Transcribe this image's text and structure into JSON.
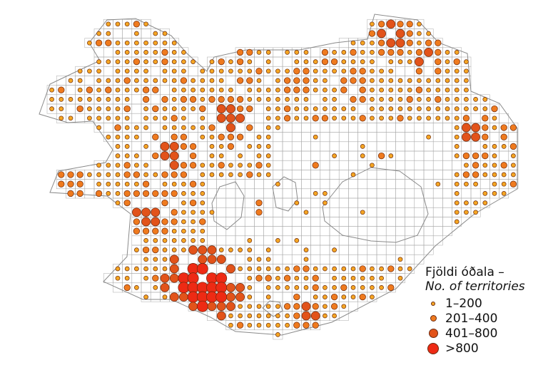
{
  "legend": {
    "title": "Fjöldi óðala –",
    "subtitle": "No. of territories",
    "classes": [
      {
        "label": "1–200",
        "color": "#f5a623"
      },
      {
        "label": "201–400",
        "color": "#ef7a1e"
      },
      {
        "label": "401–800",
        "color": "#e2531a"
      },
      {
        "label": ">800",
        "color": "#ee2a14"
      }
    ]
  },
  "colors": {
    "grid_line": "#a8a8a8",
    "coastline": "#8a8a8a",
    "symbol_outline": "#6b2a10",
    "background": "#ffffff"
  }
}
